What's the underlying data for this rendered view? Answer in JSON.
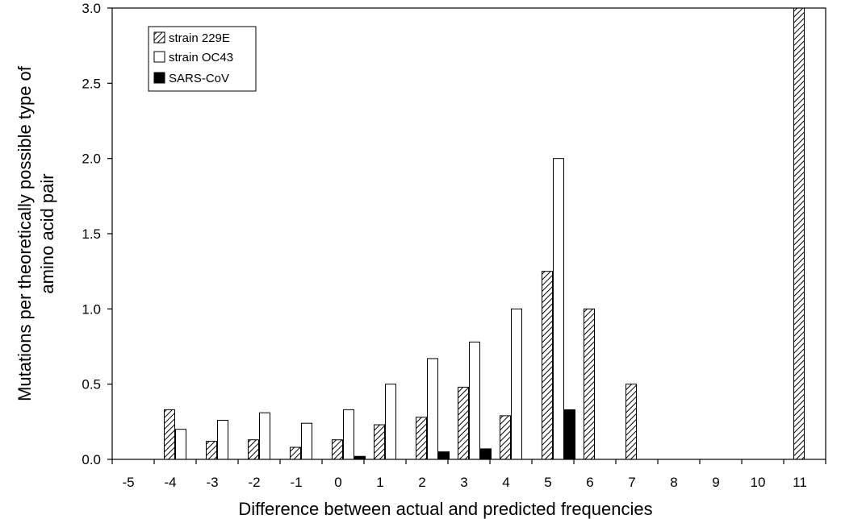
{
  "chart_data": {
    "type": "bar",
    "categories": [
      "-5",
      "-4",
      "-3",
      "-2",
      "-1",
      "0",
      "1",
      "2",
      "3",
      "4",
      "5",
      "6",
      "7",
      "8",
      "9",
      "10",
      "11"
    ],
    "series": [
      {
        "name": "strain 229E",
        "fill": "hatch",
        "values": [
          null,
          0.33,
          0.12,
          0.13,
          0.08,
          0.13,
          0.23,
          0.28,
          0.48,
          0.29,
          1.25,
          1.0,
          0.5,
          null,
          null,
          null,
          3.0
        ]
      },
      {
        "name": "strain OC43",
        "fill": "white",
        "values": [
          null,
          0.2,
          0.26,
          0.31,
          0.24,
          0.33,
          0.5,
          0.67,
          0.78,
          1.0,
          2.0,
          null,
          null,
          null,
          null,
          null,
          null
        ]
      },
      {
        "name": "SARS-CoV",
        "fill": "black",
        "values": [
          null,
          null,
          null,
          null,
          null,
          0.02,
          null,
          0.05,
          0.07,
          null,
          0.33,
          null,
          null,
          null,
          null,
          null,
          null
        ]
      }
    ],
    "ylabel_lines": [
      "Mutations per theoretically possible type of",
      "amino acid pair"
    ],
    "xlabel": "Difference between actual and predicted frequencies",
    "ylim": [
      0,
      3.0
    ],
    "yticks": [
      "0.0",
      "0.5",
      "1.0",
      "1.5",
      "2.0",
      "2.5",
      "3.0"
    ],
    "grid": false,
    "legend_position": "top-left"
  }
}
